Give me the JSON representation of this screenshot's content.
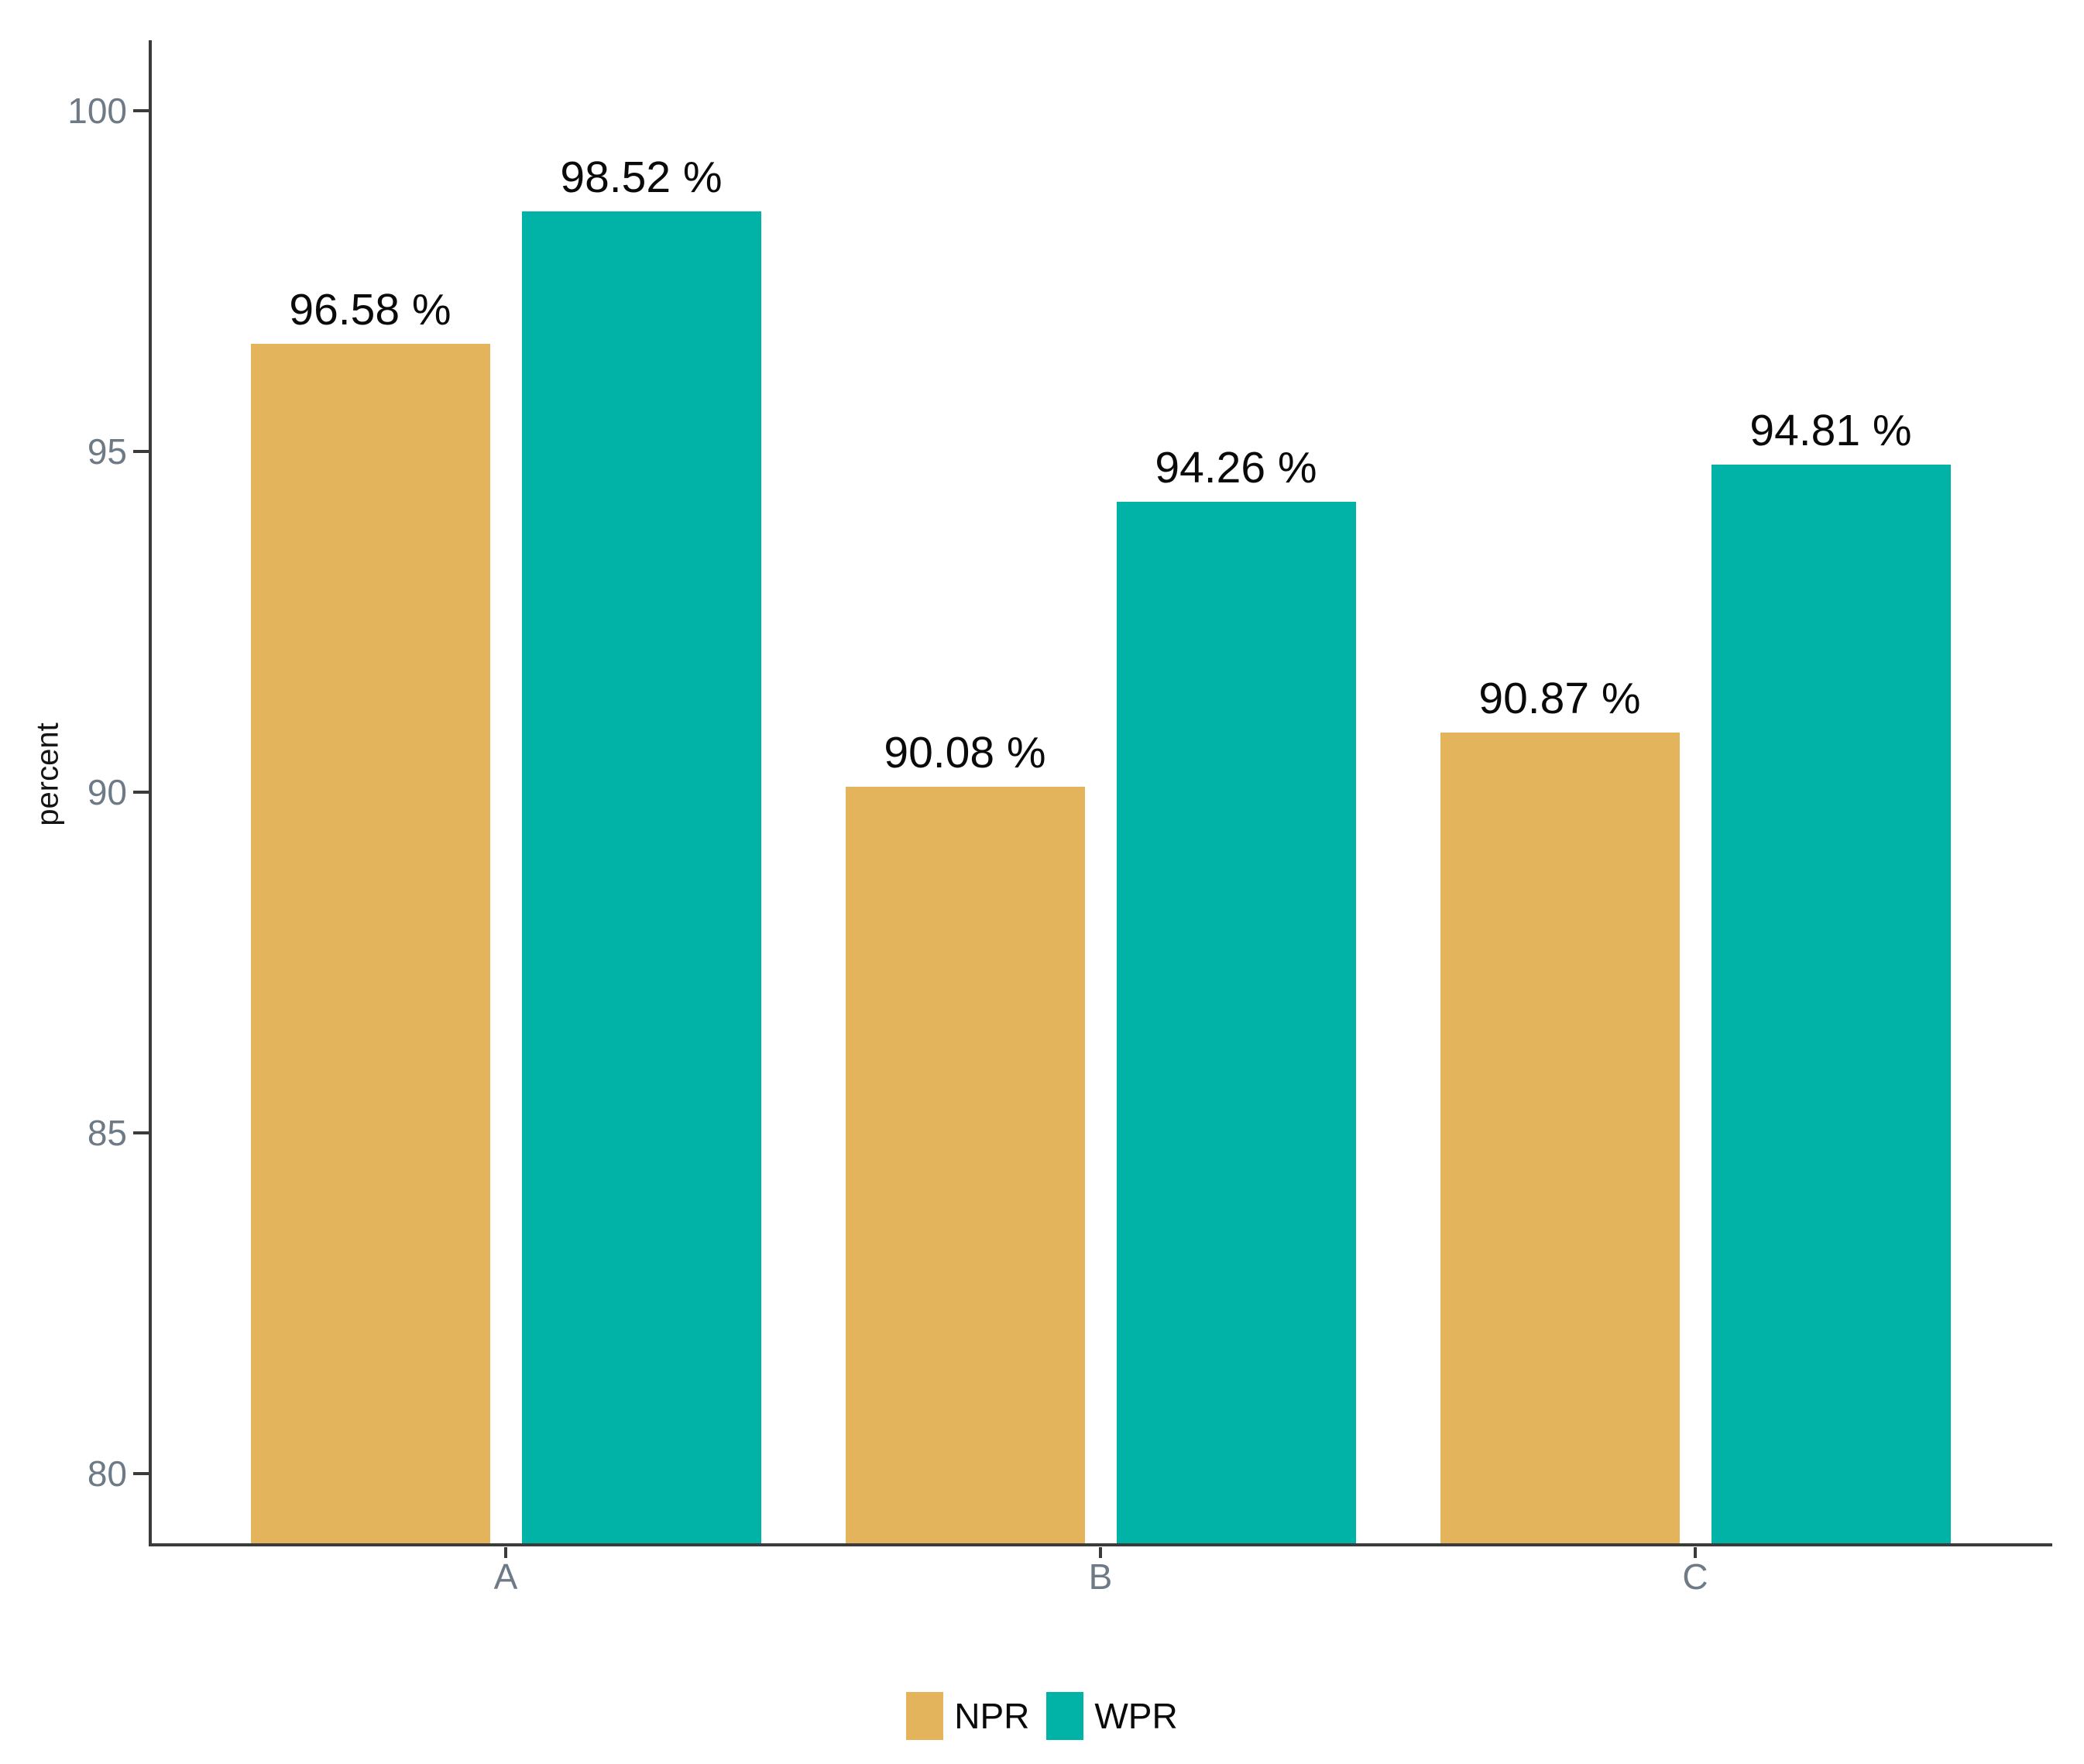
{
  "chart_data": {
    "type": "bar",
    "categories": [
      "A",
      "B",
      "C"
    ],
    "series": [
      {
        "name": "NPR",
        "color": "#E3B45C",
        "values": [
          96.58,
          90.08,
          90.87
        ],
        "value_labels": [
          "96.58 %",
          "90.08 %",
          "90.87 %"
        ]
      },
      {
        "name": "WPR",
        "color": "#00B3A6",
        "values": [
          98.52,
          94.26,
          94.81
        ],
        "value_labels": [
          "98.52 %",
          "94.26 %",
          "94.81 %"
        ]
      }
    ],
    "title": "",
    "xlabel": "",
    "ylabel": "percent",
    "ylim": [
      78.93,
      101.03
    ],
    "yticks": [
      100,
      95,
      90,
      85,
      80
    ],
    "ytick_labels": [
      "100",
      "95",
      "90",
      "85",
      "80"
    ],
    "grid": false,
    "legend_position": "bottom",
    "axis_color": "#3B3B3B",
    "tick_label_color": "#6E7A85",
    "value_label_color": "#0A0A0A"
  },
  "legend": {
    "items": [
      {
        "label": "NPR",
        "color": "#E3B45C"
      },
      {
        "label": "WPR",
        "color": "#00B3A6"
      }
    ]
  }
}
